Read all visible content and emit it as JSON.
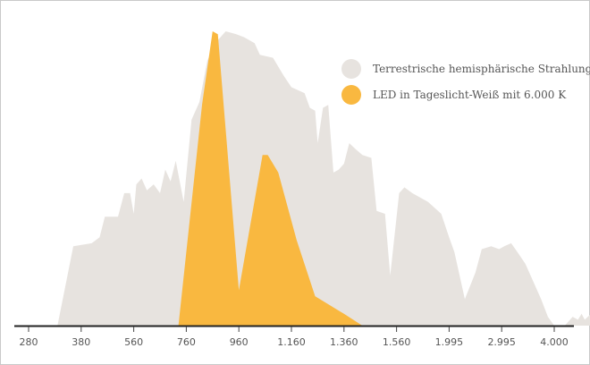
{
  "chart_data": {
    "type": "area",
    "title": "",
    "xlabel": "",
    "ylabel": "",
    "grid": false,
    "legend_position": "top-right",
    "categories": [
      "280",
      "380",
      "560",
      "760",
      "960",
      "1.160",
      "1.360",
      "1.560",
      "1.995",
      "2.995",
      "4.000"
    ],
    "series": [
      {
        "name": "Terrestrische hemisphärische Strahlung",
        "color": "#e7e3df",
        "points": [
          [
            0.55,
            0
          ],
          [
            0.85,
            27
          ],
          [
            1.2,
            28
          ],
          [
            1.35,
            30
          ],
          [
            1.45,
            37
          ],
          [
            1.7,
            37
          ],
          [
            1.82,
            45
          ],
          [
            1.93,
            45
          ],
          [
            2.0,
            38
          ],
          [
            2.05,
            48
          ],
          [
            2.15,
            50
          ],
          [
            2.25,
            46
          ],
          [
            2.38,
            48
          ],
          [
            2.5,
            45
          ],
          [
            2.6,
            53
          ],
          [
            2.7,
            49
          ],
          [
            2.8,
            56
          ],
          [
            2.95,
            42
          ],
          [
            3.1,
            70
          ],
          [
            3.25,
            76
          ],
          [
            3.4,
            90
          ],
          [
            3.55,
            96
          ],
          [
            3.75,
            100
          ],
          [
            3.95,
            99
          ],
          [
            4.1,
            98
          ],
          [
            4.3,
            96
          ],
          [
            4.4,
            92
          ],
          [
            4.65,
            91
          ],
          [
            4.85,
            85
          ],
          [
            5.0,
            81
          ],
          [
            5.25,
            79
          ],
          [
            5.35,
            74
          ],
          [
            5.45,
            73
          ],
          [
            5.5,
            62
          ],
          [
            5.6,
            74
          ],
          [
            5.7,
            75
          ],
          [
            5.8,
            52
          ],
          [
            5.9,
            53
          ],
          [
            6.0,
            55
          ],
          [
            6.1,
            62
          ],
          [
            6.22,
            60
          ],
          [
            6.35,
            58
          ],
          [
            6.52,
            57
          ],
          [
            6.62,
            39
          ],
          [
            6.78,
            38
          ],
          [
            6.88,
            17
          ],
          [
            7.05,
            45
          ],
          [
            7.15,
            47
          ],
          [
            7.3,
            45
          ],
          [
            7.6,
            42
          ],
          [
            7.85,
            38
          ],
          [
            8.0,
            30
          ],
          [
            8.1,
            25
          ],
          [
            8.3,
            9
          ],
          [
            8.5,
            18
          ],
          [
            8.62,
            26
          ],
          [
            8.8,
            27
          ],
          [
            8.95,
            26
          ],
          [
            9.05,
            27
          ],
          [
            9.18,
            28
          ],
          [
            9.3,
            25
          ],
          [
            9.45,
            21
          ],
          [
            9.6,
            15
          ],
          [
            9.75,
            9
          ],
          [
            9.88,
            3
          ],
          [
            10.0,
            0
          ],
          [
            10.2,
            0
          ],
          [
            10.35,
            3
          ],
          [
            10.45,
            2
          ],
          [
            10.52,
            4
          ],
          [
            10.58,
            2
          ],
          [
            10.7,
            4
          ],
          [
            10.8,
            8
          ],
          [
            10.95,
            12
          ],
          [
            11.1,
            13
          ],
          [
            11.3,
            13
          ],
          [
            11.55,
            12
          ],
          [
            11.8,
            12
          ],
          [
            12.0,
            12
          ],
          [
            12.3,
            12
          ],
          [
            12.55,
            12
          ],
          [
            12.9,
            11
          ],
          [
            13.0,
            0
          ],
          [
            13.3,
            3
          ],
          [
            13.5,
            6
          ],
          [
            13.7,
            5
          ],
          [
            13.9,
            4
          ],
          [
            14.15,
            3
          ],
          [
            14.2,
            0
          ]
        ]
      },
      {
        "name": "LED in Tageslicht-Weiß mit 6.000 K",
        "color": "#f9b840",
        "points": [
          [
            2.85,
            0
          ],
          [
            3.3,
            75
          ],
          [
            3.5,
            100
          ],
          [
            3.6,
            99
          ],
          [
            4.0,
            12
          ],
          [
            4.45,
            58
          ],
          [
            4.55,
            58
          ],
          [
            4.75,
            52
          ],
          [
            5.1,
            29
          ],
          [
            5.45,
            10
          ],
          [
            6.0,
            4
          ],
          [
            6.35,
            0
          ]
        ]
      }
    ]
  }
}
